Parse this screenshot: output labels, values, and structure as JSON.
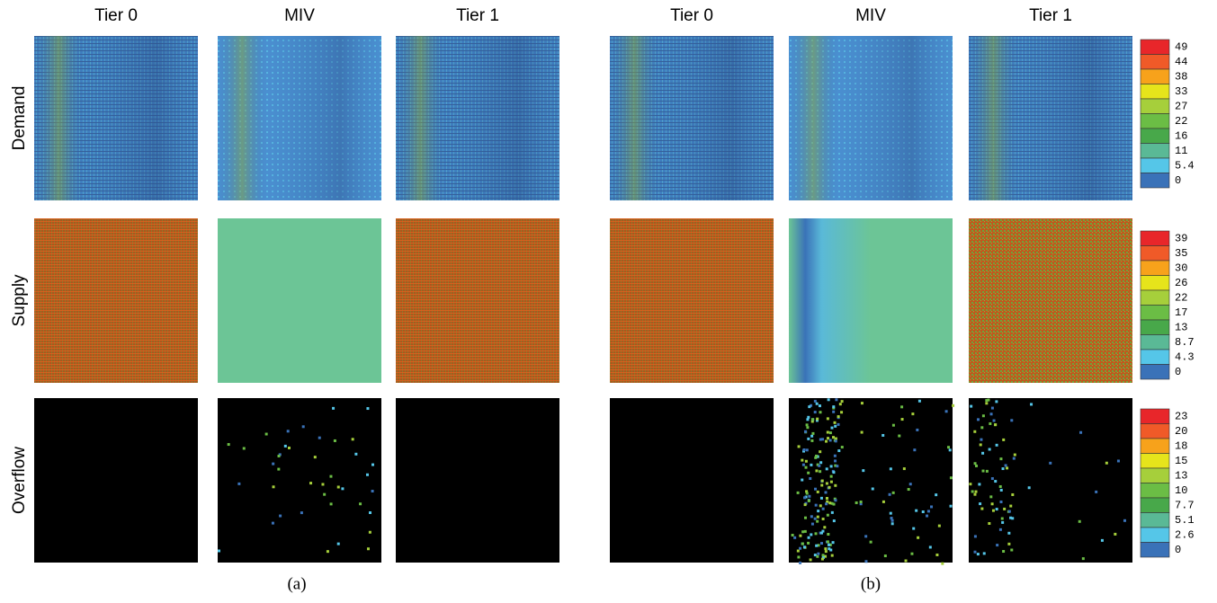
{
  "columns_a": [
    "Tier 0",
    "MIV",
    "Tier 1"
  ],
  "columns_b": [
    "Tier 0",
    "MIV",
    "Tier 1"
  ],
  "rows": [
    "Demand",
    "Supply",
    "Overflow"
  ],
  "colorbars": [
    {
      "labels": [
        49,
        44,
        38,
        33,
        27,
        22,
        16,
        11,
        5.4,
        0
      ]
    },
    {
      "labels": [
        39,
        35,
        30,
        26,
        22,
        17,
        13,
        8.7,
        4.3,
        0
      ]
    },
    {
      "labels": [
        23,
        20,
        18,
        15,
        13,
        10,
        7.7,
        5.1,
        2.6,
        0
      ]
    }
  ],
  "captions": [
    "(a)",
    "(b)"
  ]
}
